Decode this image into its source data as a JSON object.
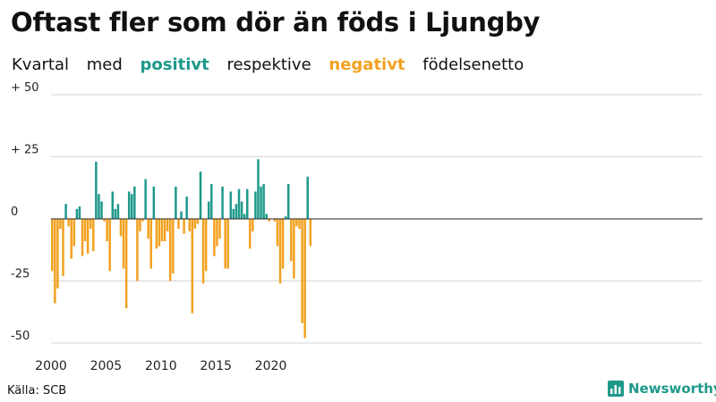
{
  "header": {
    "title": "Oftast fler som dör än föds i Ljungby",
    "subtitle_words": [
      "Kvartal",
      "med",
      "positivt",
      "respektive",
      "negativt",
      "födelsenetto"
    ]
  },
  "footer": {
    "source": "Källa: SCB",
    "brand": "Newsworthy"
  },
  "colors": {
    "positive": "#1e998a",
    "negative": "#f2a120",
    "grid": "#d6d6d6",
    "baseline": "#222222"
  },
  "icons": {
    "brand": "bar-chart-icon"
  },
  "chart_data": {
    "type": "bar",
    "ylim": [
      -50,
      50
    ],
    "y_ticks": [
      {
        "value": 50,
        "label": "+ 50"
      },
      {
        "value": 25,
        "label": "+ 25"
      },
      {
        "value": 0,
        "label": "0"
      },
      {
        "value": -25,
        "label": "-25"
      },
      {
        "value": -50,
        "label": "-50"
      }
    ],
    "x_ticks": [
      "2000",
      "2005",
      "2010",
      "2015",
      "2020"
    ],
    "grid": true,
    "legend": "inline in subtitle",
    "start": "2000-Q1",
    "values": [
      -21,
      -34,
      -28,
      -4,
      -23,
      6,
      -3,
      -16,
      -11,
      4,
      5,
      -15,
      -9,
      -14,
      -4,
      -13,
      23,
      10,
      7,
      -1,
      -9,
      -21,
      11,
      4,
      6,
      -7,
      -20,
      -36,
      11,
      10,
      13,
      -25,
      -5,
      -1,
      16,
      -8,
      -20,
      13,
      -12,
      -11,
      -9,
      -9,
      -5,
      -25,
      -22,
      13,
      -4,
      3,
      -6,
      9,
      -5,
      -38,
      -4,
      -2,
      19,
      -26,
      -21,
      7,
      14,
      -15,
      -11,
      -8,
      13,
      -20,
      -20,
      11,
      4,
      6,
      12,
      7,
      2,
      12,
      -12,
      -5,
      11,
      24,
      13,
      14,
      2,
      -1,
      0,
      -1,
      -11,
      -26,
      -20,
      1,
      14,
      -17,
      -24,
      -3,
      -4,
      -42,
      -48,
      17,
      -11
    ]
  }
}
